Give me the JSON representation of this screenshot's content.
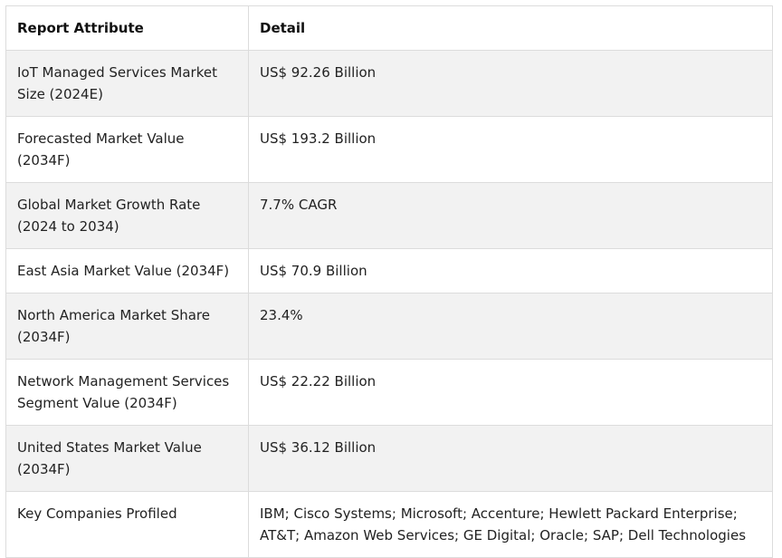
{
  "table": {
    "headers": [
      "Report Attribute",
      "Detail"
    ],
    "rows": [
      {
        "attribute": "IoT Managed Services Market Size (2024E)",
        "detail": "US$ 92.26 Billion"
      },
      {
        "attribute": "Forecasted Market Value (2034F)",
        "detail": "US$ 193.2 Billion"
      },
      {
        "attribute": "Global Market Growth Rate (2024 to 2034)",
        "detail": "7.7% CAGR"
      },
      {
        "attribute": "East Asia Market Value (2034F)",
        "detail": "US$ 70.9 Billion"
      },
      {
        "attribute": "North America Market Share (2034F)",
        "detail": "23.4%"
      },
      {
        "attribute": "Network Management Services Segment Value (2034F)",
        "detail": "US$ 22.22 Billion"
      },
      {
        "attribute": "United States Market Value (2034F)",
        "detail": "US$ 36.12 Billion"
      },
      {
        "attribute": "Key Companies Profiled",
        "detail": "IBM; Cisco Systems; Microsoft; Accenture; Hewlett Packard Enterprise; AT&T; Amazon Web Services; GE Digital; Oracle; SAP; Dell Technologies"
      }
    ]
  }
}
